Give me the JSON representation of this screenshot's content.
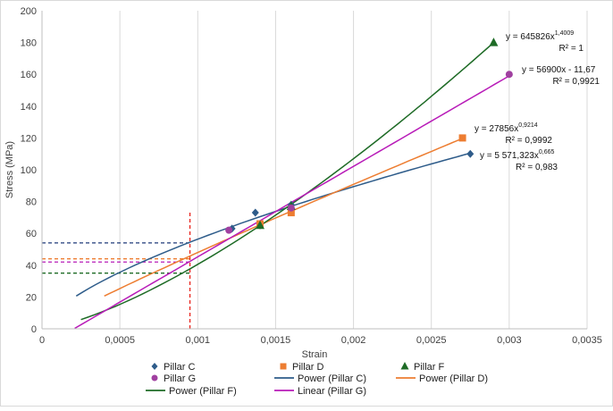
{
  "chart_data": {
    "type": "scatter",
    "xlabel": "Strain",
    "ylabel": "Stress (MPa)",
    "xlim": [
      0,
      0.0035
    ],
    "ylim": [
      0,
      200
    ],
    "x_ticks": [
      0,
      0.0005,
      0.001,
      0.0015,
      0.002,
      0.0025,
      0.003,
      0.0035
    ],
    "x_tick_labels": [
      "0",
      "0,0005",
      "0,001",
      "0,0015",
      "0,002",
      "0,0025",
      "0,003",
      "0,0035"
    ],
    "y_ticks": [
      0,
      20,
      40,
      60,
      80,
      100,
      120,
      140,
      160,
      180,
      200
    ],
    "y_tick_labels": [
      "0",
      "20",
      "40",
      "60",
      "80",
      "100",
      "120",
      "140",
      "160",
      "180",
      "200"
    ],
    "grid": "vertical",
    "legend_position": "bottom",
    "series": [
      {
        "name": "Pillar C",
        "marker": "diamond",
        "color": "#2E5C8A",
        "points": [
          [
            0.00122,
            63
          ],
          [
            0.00137,
            73
          ],
          [
            0.0014,
            65
          ],
          [
            0.0016,
            78
          ],
          [
            0.00275,
            110
          ]
        ]
      },
      {
        "name": "Pillar D",
        "marker": "square",
        "color": "#ED7D31",
        "points": [
          [
            0.0014,
            66
          ],
          [
            0.0016,
            73
          ],
          [
            0.0027,
            120
          ]
        ]
      },
      {
        "name": "Pillar F",
        "marker": "triangle",
        "color": "#1E6B26",
        "points": [
          [
            0.0014,
            65
          ],
          [
            0.0016,
            77
          ],
          [
            0.0029,
            180
          ]
        ]
      },
      {
        "name": "Pillar G",
        "marker": "circle",
        "color": "#A040A0",
        "points": [
          [
            0.0012,
            62
          ],
          [
            0.0016,
            76
          ],
          [
            0.003,
            160
          ]
        ]
      }
    ],
    "trendlines": [
      {
        "name": "Power (Pillar C)",
        "type": "power",
        "coef": 5571.323,
        "exp": 0.665,
        "x_range": [
          0.00022,
          0.00275
        ],
        "color": "#2E5C8A",
        "equation": "y = 5 571,323x",
        "equation_exponent": "0,665",
        "r2": "R² = 0,983"
      },
      {
        "name": "Power (Pillar D)",
        "type": "power",
        "coef": 27856,
        "exp": 0.9214,
        "x_range": [
          0.0004,
          0.0027
        ],
        "color": "#ED7D31",
        "equation": "y = 27856x",
        "equation_exponent": "0,9214",
        "r2": "R² = 0,9992"
      },
      {
        "name": "Power (Pillar F)",
        "type": "power",
        "coef": 645826,
        "exp": 1.4009,
        "x_range": [
          0.00025,
          0.0029
        ],
        "color": "#1E6B26",
        "equation": "y = 645826x",
        "equation_exponent": "1,4009",
        "r2": "R² = 1"
      },
      {
        "name": "Linear (Pillar G)",
        "type": "linear",
        "slope": 56900,
        "intercept": -11.67,
        "x_range": [
          0.00021,
          0.003
        ],
        "color": "#B81BB8",
        "equation": "y = 56900x - 11,67",
        "equation_exponent": "",
        "r2": "R² = 0,9921"
      }
    ],
    "reference_lines": [
      {
        "type": "vertical",
        "x": 0.00095,
        "y_range": [
          0,
          73
        ],
        "color": "#E8231C"
      },
      {
        "type": "horizontal",
        "y": 54,
        "x_range": [
          0,
          0.00095
        ],
        "color": "#1F3A78"
      },
      {
        "type": "horizontal",
        "y": 44,
        "x_range": [
          0,
          0.00095
        ],
        "color": "#ED7D31"
      },
      {
        "type": "horizontal",
        "y": 42,
        "x_range": [
          0,
          0.00095
        ],
        "color": "#B81BB8"
      },
      {
        "type": "horizontal",
        "y": 35,
        "x_range": [
          0,
          0.00095
        ],
        "color": "#1E6B26"
      }
    ],
    "legend": [
      {
        "label": "Pillar C",
        "kind": "marker",
        "marker": "diamond",
        "color": "#2E5C8A"
      },
      {
        "label": "Pillar D",
        "kind": "marker",
        "marker": "square",
        "color": "#ED7D31"
      },
      {
        "label": "Pillar F",
        "kind": "marker",
        "marker": "triangle",
        "color": "#1E6B26"
      },
      {
        "label": "Pillar G",
        "kind": "marker",
        "marker": "circle",
        "color": "#A040A0"
      },
      {
        "label": "Power (Pillar C)",
        "kind": "line",
        "color": "#2E5C8A"
      },
      {
        "label": "Power (Pillar D)",
        "kind": "line",
        "color": "#ED7D31"
      },
      {
        "label": "Power (Pillar F)",
        "kind": "line",
        "color": "#1E6B26"
      },
      {
        "label": "Linear (Pillar G)",
        "kind": "line",
        "color": "#B81BB8"
      }
    ]
  }
}
